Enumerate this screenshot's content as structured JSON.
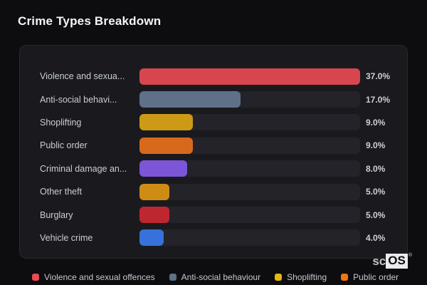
{
  "page": {
    "title": "Crime Types Breakdown"
  },
  "chart_data": {
    "type": "bar",
    "orientation": "horizontal",
    "title": "Crime Types Breakdown",
    "unit": "%",
    "xlim": [
      0,
      37
    ],
    "grid": false,
    "legend_position": "bottom",
    "categories": [
      "Violence and sexua...",
      "Anti-social behavi...",
      "Shoplifting",
      "Public order",
      "Criminal damage an...",
      "Other theft",
      "Burglary",
      "Vehicle crime"
    ],
    "values": [
      37.0,
      17.0,
      9.0,
      9.0,
      8.0,
      5.0,
      5.0,
      4.0
    ],
    "max_value": 37.0,
    "rows": [
      {
        "label": "Violence and sexua...",
        "value": 37.0,
        "value_label": "37.0%",
        "color": "#d7464f"
      },
      {
        "label": "Anti-social behavi...",
        "value": 17.0,
        "value_label": "17.0%",
        "color": "#5e7189"
      },
      {
        "label": "Shoplifting",
        "value": 9.0,
        "value_label": "9.0%",
        "color": "#cc9a16"
      },
      {
        "label": "Public order",
        "value": 9.0,
        "value_label": "9.0%",
        "color": "#d7691d"
      },
      {
        "label": "Criminal damage an...",
        "value": 8.0,
        "value_label": "8.0%",
        "color": "#7c55d8"
      },
      {
        "label": "Other theft",
        "value": 5.0,
        "value_label": "5.0%",
        "color": "#cf8c15"
      },
      {
        "label": "Burglary",
        "value": 5.0,
        "value_label": "5.0%",
        "color": "#bf2730"
      },
      {
        "label": "Vehicle crime",
        "value": 4.0,
        "value_label": "4.0%",
        "color": "#3672d9"
      }
    ]
  },
  "legend": {
    "items": [
      {
        "label": "Violence and sexual offences",
        "color": "#ea4a52"
      },
      {
        "label": "Anti-social behaviour",
        "color": "#5e7189"
      },
      {
        "label": "Shoplifting",
        "color": "#e8b70f"
      },
      {
        "label": "Public order",
        "color": "#f1750e"
      }
    ]
  },
  "brand": {
    "prefix": "sc",
    "suffix": "OS",
    "registered": "®"
  }
}
